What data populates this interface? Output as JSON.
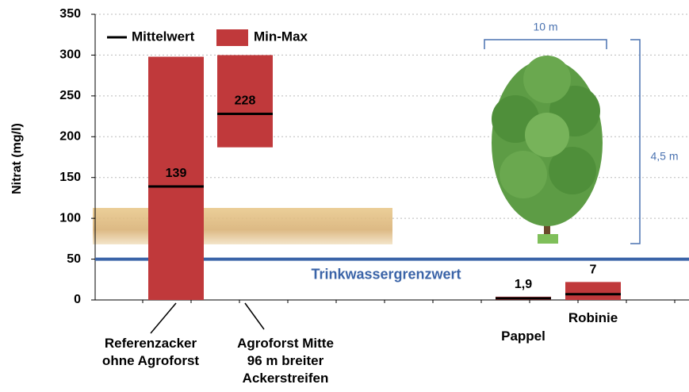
{
  "chart_data": {
    "type": "floating_bar",
    "y_label": "Nitrat (mg/l)",
    "categories": [
      "Referenzacker\nohne Agroforst",
      "Agroforst Mitte\n96 m breiter\nAckerstreifen",
      "Pappel",
      "Robinie"
    ],
    "series": [
      {
        "name": "Mittelwert",
        "color": "#000000",
        "values": [
          139,
          228,
          1.9,
          7
        ],
        "value_labels": [
          "139",
          "228",
          "1,9",
          "7"
        ]
      },
      {
        "name": "Min-Max",
        "color": "#c0393b",
        "low": [
          0,
          187,
          0,
          0
        ],
        "high": [
          298,
          300,
          4,
          22
        ]
      }
    ],
    "threshold": {
      "value": 50,
      "label": "Trinkwassergrenzwert",
      "color": "#3b64a8"
    },
    "annotations": [
      "10 m",
      "4,5 m"
    ],
    "ylim": [
      0,
      350
    ],
    "yticks": [
      0,
      50,
      100,
      150,
      200,
      250,
      300,
      350
    ],
    "grid": true,
    "legend": "top-left"
  }
}
